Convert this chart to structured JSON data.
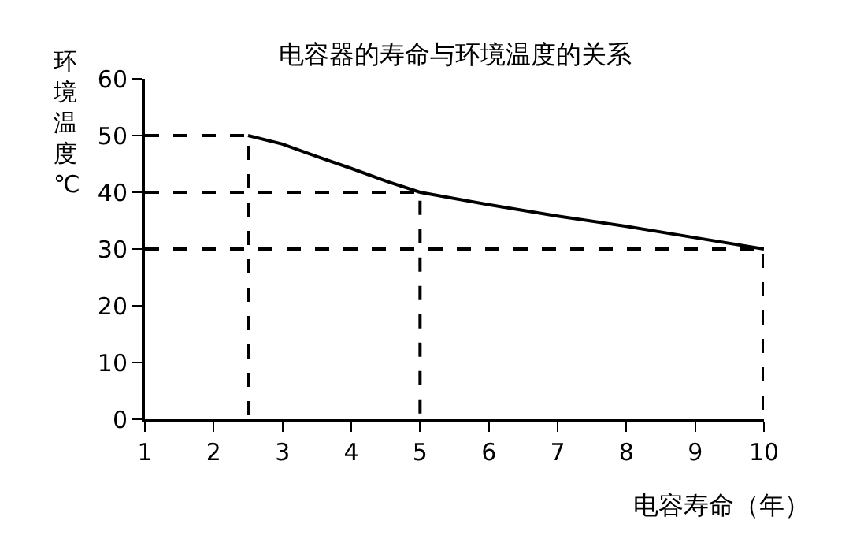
{
  "chart_data": {
    "type": "line",
    "title": "电容器的寿命与环境温度的关系",
    "xlabel": "电容寿命（年）",
    "ylabel": "环境温度℃",
    "xlim": [
      1,
      10
    ],
    "xticks": [
      1,
      2,
      3,
      4,
      5,
      6,
      7,
      8,
      9,
      10
    ],
    "ylim": [
      0,
      60
    ],
    "yticks": [
      0,
      10,
      20,
      30,
      40,
      50,
      60
    ],
    "marker": "none",
    "series": [
      {
        "color": "#000000",
        "line_style": "solid",
        "x": [
          2.5,
          3,
          3.5,
          4,
          4.5,
          5,
          6,
          7,
          8,
          9,
          10
        ],
        "values": [
          50,
          48.5,
          46.3,
          44.2,
          42,
          40,
          37.8,
          35.8,
          34,
          32,
          30
        ]
      },
      {
        "color": "#000000",
        "line_style": "dashed",
        "x": [
          1,
          2.5,
          2.5
        ],
        "values": [
          50,
          50,
          0
        ]
      },
      {
        "color": "#000000",
        "line_style": "dashed",
        "x": [
          1,
          5,
          5
        ],
        "values": [
          40,
          40,
          0
        ]
      },
      {
        "color": "#000000",
        "line_style": "dashed",
        "x": [
          1,
          10,
          10
        ],
        "values": [
          30,
          30,
          0
        ]
      }
    ]
  }
}
